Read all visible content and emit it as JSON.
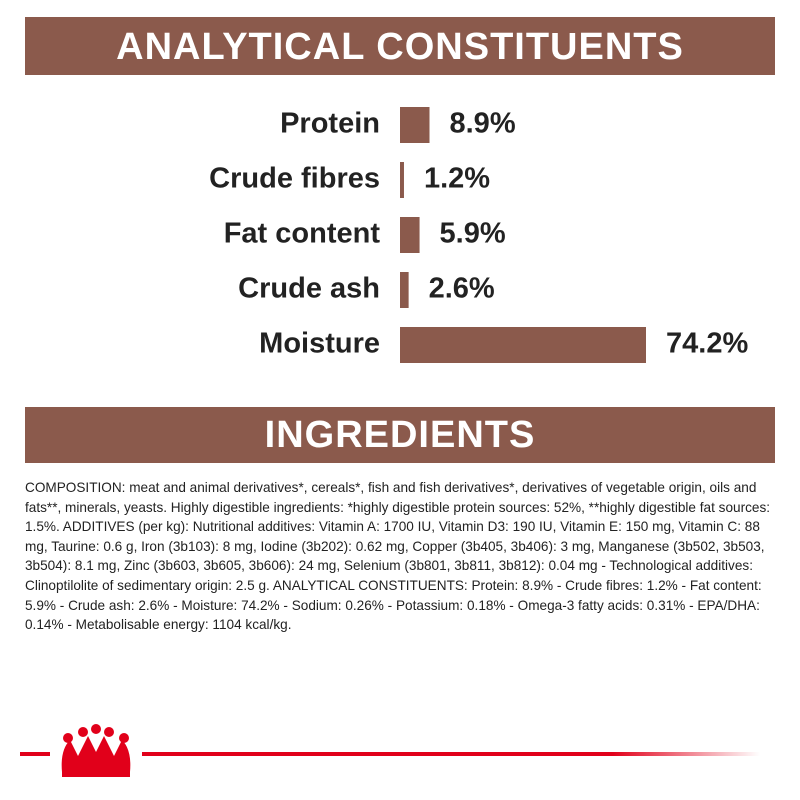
{
  "chart_data": {
    "type": "bar",
    "title": "ANALYTICAL CONSTITUENTS",
    "categories": [
      "Protein",
      "Crude fibres",
      "Fat content",
      "Crude ash",
      "Moisture"
    ],
    "values": [
      8.9,
      1.2,
      5.9,
      2.6,
      74.2
    ],
    "value_labels": [
      "8.9%",
      "1.2%",
      "5.9%",
      "2.6%",
      "74.2%"
    ],
    "color": "#8b5a4c"
  },
  "ingredients": {
    "title": "INGREDIENTS",
    "text": "COMPOSITION: meat and animal derivatives*, cereals*, fish and fish derivatives*, derivatives of vegetable origin, oils and fats**, minerals, yeasts. Highly digestible ingredients: *highly digestible protein sources: 52%, **highly digestible fat sources: 1.5%. ADDITIVES (per kg): Nutritional additives: Vitamin A: 1700 IU, Vitamin D3: 190 IU, Vitamin E: 150 mg, Vitamin C: 88 mg, Taurine: 0.6 g, Iron (3b103): 8 mg, Iodine (3b202): 0.62 mg, Copper (3b405, 3b406): 3 mg, Manganese (3b502, 3b503, 3b504): 8.1 mg, Zinc (3b603, 3b605, 3b606): 24 mg, Selenium (3b801, 3b811, 3b812): 0.04 mg - Technological additives: Clinoptilolite of sedimentary origin: 2.5 g. ANALYTICAL CONSTITUENTS: Protein: 8.9% - Crude fibres: 1.2% - Fat content: 5.9% - Crude ash: 2.6% - Moisture: 74.2% - Sodium: 0.26% - Potassium: 0.18% - Omega-3 fatty acids: 0.31% - EPA/DHA: 0.14% - Metabolisable energy: 1104 kcal/kg."
  }
}
